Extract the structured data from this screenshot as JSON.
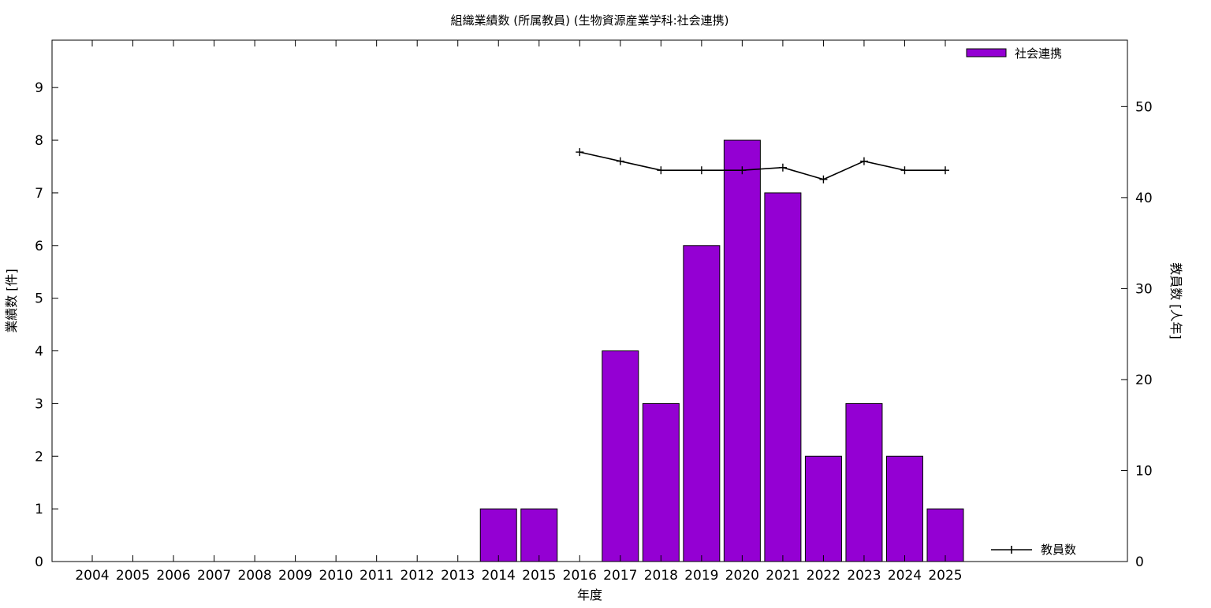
{
  "chart_data": {
    "type": "bar",
    "title": "組織業績数 (所属教員) (生物資源産業学科:社会連携)",
    "xlabel": "年度",
    "ylabel": "業績数 [件]",
    "y2label": "教員数 [人年]",
    "categories": [
      "2004",
      "2005",
      "2006",
      "2007",
      "2008",
      "2009",
      "2010",
      "2011",
      "2012",
      "2013",
      "2014",
      "2015",
      "2016",
      "2017",
      "2018",
      "2019",
      "2020",
      "2021",
      "2022",
      "2023",
      "2024",
      "2025"
    ],
    "series": [
      {
        "name": "社会連携",
        "type": "bar",
        "axis": "left",
        "color": "#9400d3",
        "values": [
          0,
          0,
          0,
          0,
          0,
          0,
          0,
          0,
          0,
          0,
          1,
          1,
          0,
          4,
          3,
          6,
          8,
          7,
          2,
          3,
          2,
          1
        ]
      },
      {
        "name": "教員数",
        "type": "line",
        "axis": "right",
        "color": "#000000",
        "values": [
          null,
          null,
          null,
          null,
          null,
          null,
          null,
          null,
          null,
          null,
          null,
          null,
          45,
          44,
          43,
          43,
          43,
          43.3,
          42,
          44,
          43,
          43
        ]
      }
    ],
    "ylim": [
      0,
      9.9
    ],
    "yticks": [
      0,
      1,
      2,
      3,
      4,
      5,
      6,
      7,
      8,
      9
    ],
    "y2lim": [
      0,
      57.3
    ],
    "y2ticks": [
      0,
      10,
      20,
      30,
      40,
      50
    ],
    "legend_bar": "top-right",
    "legend_line": "bottom-right",
    "grid": false
  }
}
